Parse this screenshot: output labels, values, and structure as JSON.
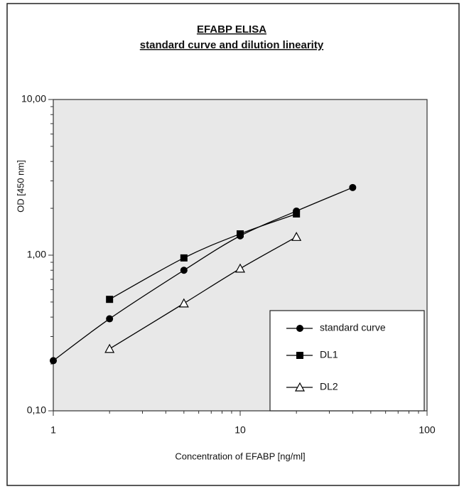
{
  "chart_data": {
    "type": "line",
    "title": "EFABP ELISA",
    "subtitle": "standard curve and dilution linearity",
    "x_label": "Concentration of EFABP [ng/ml]",
    "y_label": "OD [450 nm]",
    "xscale": "log",
    "yscale": "log",
    "xlim": [
      1,
      100
    ],
    "ylim": [
      0.1,
      10
    ],
    "xticks": [
      1,
      10,
      100
    ],
    "yticks": [
      {
        "value": 10,
        "label": "10,00"
      },
      {
        "value": 1,
        "label": "1,00"
      },
      {
        "value": 0.1,
        "label": "0,10"
      }
    ],
    "legend_position": "lower right",
    "series": [
      {
        "name": "standard curve",
        "color": "#000000",
        "marker": "circle",
        "x": [
          1,
          2,
          5,
          10,
          20,
          40
        ],
        "values": [
          0.21,
          0.39,
          0.8,
          1.33,
          1.92,
          2.72
        ]
      },
      {
        "name": "DL1",
        "color": "#000000",
        "marker": "square",
        "x": [
          2,
          5,
          10,
          20
        ],
        "values": [
          0.52,
          0.96,
          1.37,
          1.84
        ]
      },
      {
        "name": "DL2",
        "color": "#000000",
        "marker": "triangle",
        "x": [
          2,
          5,
          10,
          20
        ],
        "values": [
          0.25,
          0.49,
          0.82,
          1.31
        ]
      }
    ]
  }
}
